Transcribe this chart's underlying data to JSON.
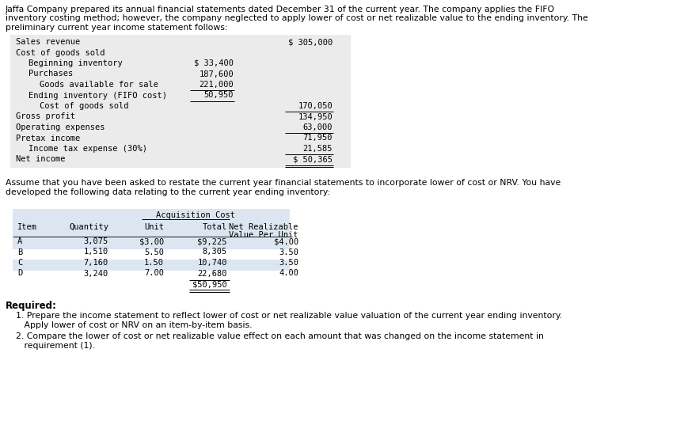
{
  "bg_color": "#ffffff",
  "intro_text": [
    "Jaffa Company prepared its annual financial statements dated December 31 of the current year. The company applies the FIFO",
    "inventory costing method; however, the company neglected to apply lower of cost or net realizable value to the ending inventory. The",
    "preliminary current year income statement follows:"
  ],
  "income_statement": [
    {
      "label": "Sales revenue",
      "col1": "",
      "col2": "$ 305,000",
      "indent": 0,
      "ul_col1": false,
      "ul_col2": false
    },
    {
      "label": "Cost of goods sold",
      "col1": "",
      "col2": "",
      "indent": 0,
      "ul_col1": false,
      "ul_col2": false
    },
    {
      "label": "Beginning inventory",
      "col1": "$ 33,400",
      "col2": "",
      "indent": 1,
      "ul_col1": false,
      "ul_col2": false
    },
    {
      "label": "Purchases",
      "col1": "187,600",
      "col2": "",
      "indent": 1,
      "ul_col1": false,
      "ul_col2": false
    },
    {
      "label": "Goods available for sale",
      "col1": "221,000",
      "col2": "",
      "indent": 2,
      "ul_col1": true,
      "ul_col2": false
    },
    {
      "label": "Ending inventory (FIFO cost)",
      "col1": "50,950",
      "col2": "",
      "indent": 1,
      "ul_col1": true,
      "ul_col2": false
    },
    {
      "label": "Cost of goods sold",
      "col1": "",
      "col2": "170,050",
      "indent": 2,
      "ul_col1": false,
      "ul_col2": true
    },
    {
      "label": "Gross profit",
      "col1": "",
      "col2": "134,950",
      "indent": 0,
      "ul_col1": false,
      "ul_col2": false
    },
    {
      "label": "Operating expenses",
      "col1": "",
      "col2": "63,000",
      "indent": 0,
      "ul_col1": false,
      "ul_col2": true
    },
    {
      "label": "Pretax income",
      "col1": "",
      "col2": "71,950",
      "indent": 0,
      "ul_col1": false,
      "ul_col2": false
    },
    {
      "label": "Income tax expense (30%)",
      "col1": "",
      "col2": "21,585",
      "indent": 1,
      "ul_col1": false,
      "ul_col2": true
    },
    {
      "label": "Net income",
      "col1": "",
      "col2": "$ 50,365",
      "indent": 0,
      "ul_col1": false,
      "ul_col2": false
    }
  ],
  "assume_text": [
    "Assume that you have been asked to restate the current year financial statements to incorporate lower of cost or NRV. You have",
    "developed the following data relating to the current year ending inventory:"
  ],
  "table_header1": "Acquisition Cost",
  "table_col_headers": [
    "Item",
    "Quantity",
    "Unit",
    "Total",
    "Net Realizable",
    "Value Per Unit"
  ],
  "table_data": [
    [
      "A",
      "3,075",
      "$3.00",
      "$9,225",
      "$4.00"
    ],
    [
      "B",
      "1,510",
      "5.50",
      "8,305",
      "3.50"
    ],
    [
      "C",
      "7,160",
      "1.50",
      "10,740",
      "3.50"
    ],
    [
      "D",
      "3,240",
      "7.00",
      "22,680",
      "4.00"
    ]
  ],
  "table_total": "$50,950",
  "required_text": "Required:",
  "req1_line1": "1. Prepare the income statement to reflect lower of cost or net realizable value valuation of the current year ending inventory.",
  "req1_line2": "   Apply lower of cost or NRV on an item-by-item basis.",
  "req2_line1": "2. Compare the lower of cost or net realizable value effect on each amount that was changed on the income statement in",
  "req2_line2": "   requirement (1).",
  "table_bg": "#dce6f1"
}
